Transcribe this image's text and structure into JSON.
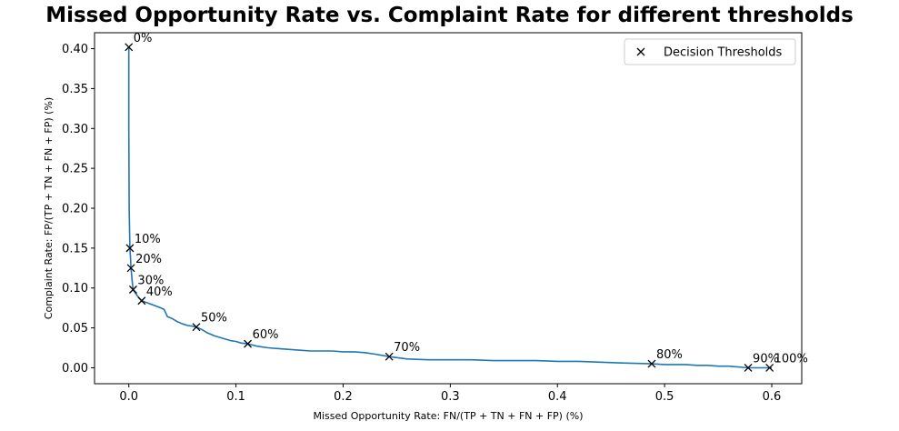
{
  "chart_data": {
    "type": "line",
    "title": "Missed Opportunity Rate vs. Complaint Rate for different thresholds",
    "xlabel": "Missed Opportunity Rate: FN/(TP + TN + FN + FP) (%)",
    "ylabel": "Complaint Rate: FP/(TP + TN + FN + FP) (%)",
    "xlim": [
      -0.032,
      0.628
    ],
    "ylim": [
      -0.02,
      0.42
    ],
    "xticks": [
      0.0,
      0.1,
      0.2,
      0.3,
      0.4,
      0.5,
      0.6
    ],
    "xtick_labels": [
      "0.0",
      "0.1",
      "0.2",
      "0.3",
      "0.4",
      "0.5",
      "0.6"
    ],
    "yticks": [
      0.0,
      0.05,
      0.1,
      0.15,
      0.2,
      0.25,
      0.3,
      0.35,
      0.4
    ],
    "ytick_labels": [
      "0.00",
      "0.05",
      "0.10",
      "0.15",
      "0.20",
      "0.25",
      "0.30",
      "0.35",
      "0.40"
    ],
    "grid": false,
    "legend_position": "top-right",
    "legend_entries": [
      "Decision Thresholds"
    ],
    "line_color": "#1f77b4",
    "marker_color": "#000000",
    "curve": {
      "x": [
        0.0,
        0.0,
        0.0003,
        0.001,
        0.0015,
        0.002,
        0.003,
        0.004,
        0.006,
        0.008,
        0.01,
        0.012,
        0.016,
        0.02,
        0.024,
        0.028,
        0.03,
        0.033,
        0.036,
        0.04,
        0.045,
        0.05,
        0.055,
        0.06,
        0.063,
        0.068,
        0.073,
        0.08,
        0.085,
        0.09,
        0.095,
        0.1,
        0.105,
        0.111,
        0.12,
        0.13,
        0.14,
        0.15,
        0.16,
        0.17,
        0.18,
        0.19,
        0.2,
        0.21,
        0.22,
        0.23,
        0.243,
        0.26,
        0.28,
        0.3,
        0.32,
        0.34,
        0.36,
        0.38,
        0.4,
        0.42,
        0.44,
        0.46,
        0.488,
        0.5,
        0.51,
        0.52,
        0.53,
        0.54,
        0.55,
        0.56,
        0.578,
        0.59,
        0.6
      ],
      "y": [
        0.402,
        0.3,
        0.2,
        0.15,
        0.14,
        0.125,
        0.11,
        0.098,
        0.094,
        0.09,
        0.087,
        0.084,
        0.082,
        0.08,
        0.078,
        0.076,
        0.075,
        0.073,
        0.064,
        0.062,
        0.058,
        0.055,
        0.053,
        0.052,
        0.051,
        0.048,
        0.044,
        0.04,
        0.038,
        0.036,
        0.034,
        0.033,
        0.031,
        0.03,
        0.027,
        0.025,
        0.024,
        0.023,
        0.022,
        0.021,
        0.021,
        0.021,
        0.02,
        0.02,
        0.019,
        0.017,
        0.014,
        0.011,
        0.01,
        0.01,
        0.01,
        0.009,
        0.009,
        0.009,
        0.008,
        0.008,
        0.007,
        0.006,
        0.005,
        0.004,
        0.004,
        0.004,
        0.003,
        0.003,
        0.002,
        0.002,
        0.0,
        0.0,
        0.0
      ]
    },
    "thresholds": [
      {
        "label": "0%",
        "x": 0.0,
        "y": 0.402
      },
      {
        "label": "10%",
        "x": 0.001,
        "y": 0.15
      },
      {
        "label": "20%",
        "x": 0.002,
        "y": 0.125
      },
      {
        "label": "30%",
        "x": 0.004,
        "y": 0.098
      },
      {
        "label": "40%",
        "x": 0.012,
        "y": 0.084
      },
      {
        "label": "50%",
        "x": 0.063,
        "y": 0.051
      },
      {
        "label": "60%",
        "x": 0.111,
        "y": 0.03
      },
      {
        "label": "70%",
        "x": 0.243,
        "y": 0.014
      },
      {
        "label": "80%",
        "x": 0.488,
        "y": 0.005
      },
      {
        "label": "90%",
        "x": 0.578,
        "y": 0.0
      },
      {
        "label": "100%",
        "x": 0.598,
        "y": 0.0
      }
    ]
  }
}
